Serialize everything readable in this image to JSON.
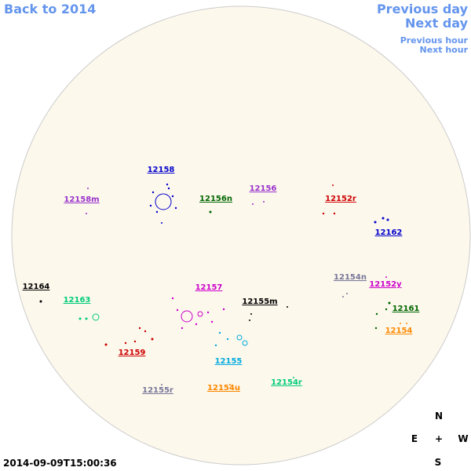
{
  "nav": {
    "back": "Back to 2014",
    "previous_day": "Previous day",
    "next_day": "Next day",
    "previous_hour": "Previous hour",
    "next_hour": "Next hour"
  },
  "regions": [
    {
      "label": "12158",
      "color": "#0000cc"
    },
    {
      "label": "12158m",
      "color": "#9933cc"
    },
    {
      "label": "12156n",
      "color": "#006600"
    },
    {
      "label": "12156",
      "color": "#9933cc"
    },
    {
      "label": "12152r",
      "color": "#cc0000"
    },
    {
      "label": "12162",
      "color": "#0000cc"
    },
    {
      "label": "12154n",
      "color": "#777799"
    },
    {
      "label": "12152y",
      "color": "#cc00cc"
    },
    {
      "label": "12164",
      "color": "#000000"
    },
    {
      "label": "12163",
      "color": "#00cc77"
    },
    {
      "label": "12157",
      "color": "#cc00cc"
    },
    {
      "label": "12155m",
      "color": "#000000"
    },
    {
      "label": "12161",
      "color": "#006600"
    },
    {
      "label": "12154",
      "color": "#ff8800"
    },
    {
      "label": "12159",
      "color": "#cc0000"
    },
    {
      "label": "12155",
      "color": "#00aadd"
    },
    {
      "label": "12154r",
      "color": "#00cc77"
    },
    {
      "label": "12155r",
      "color": "#777799"
    },
    {
      "label": "12154u",
      "color": "#ff8800"
    }
  ],
  "compass": {
    "north": "N",
    "east": "E",
    "center": "+",
    "west": "W",
    "south": "S"
  },
  "timestamp": "2014-09-09T15:00:36"
}
